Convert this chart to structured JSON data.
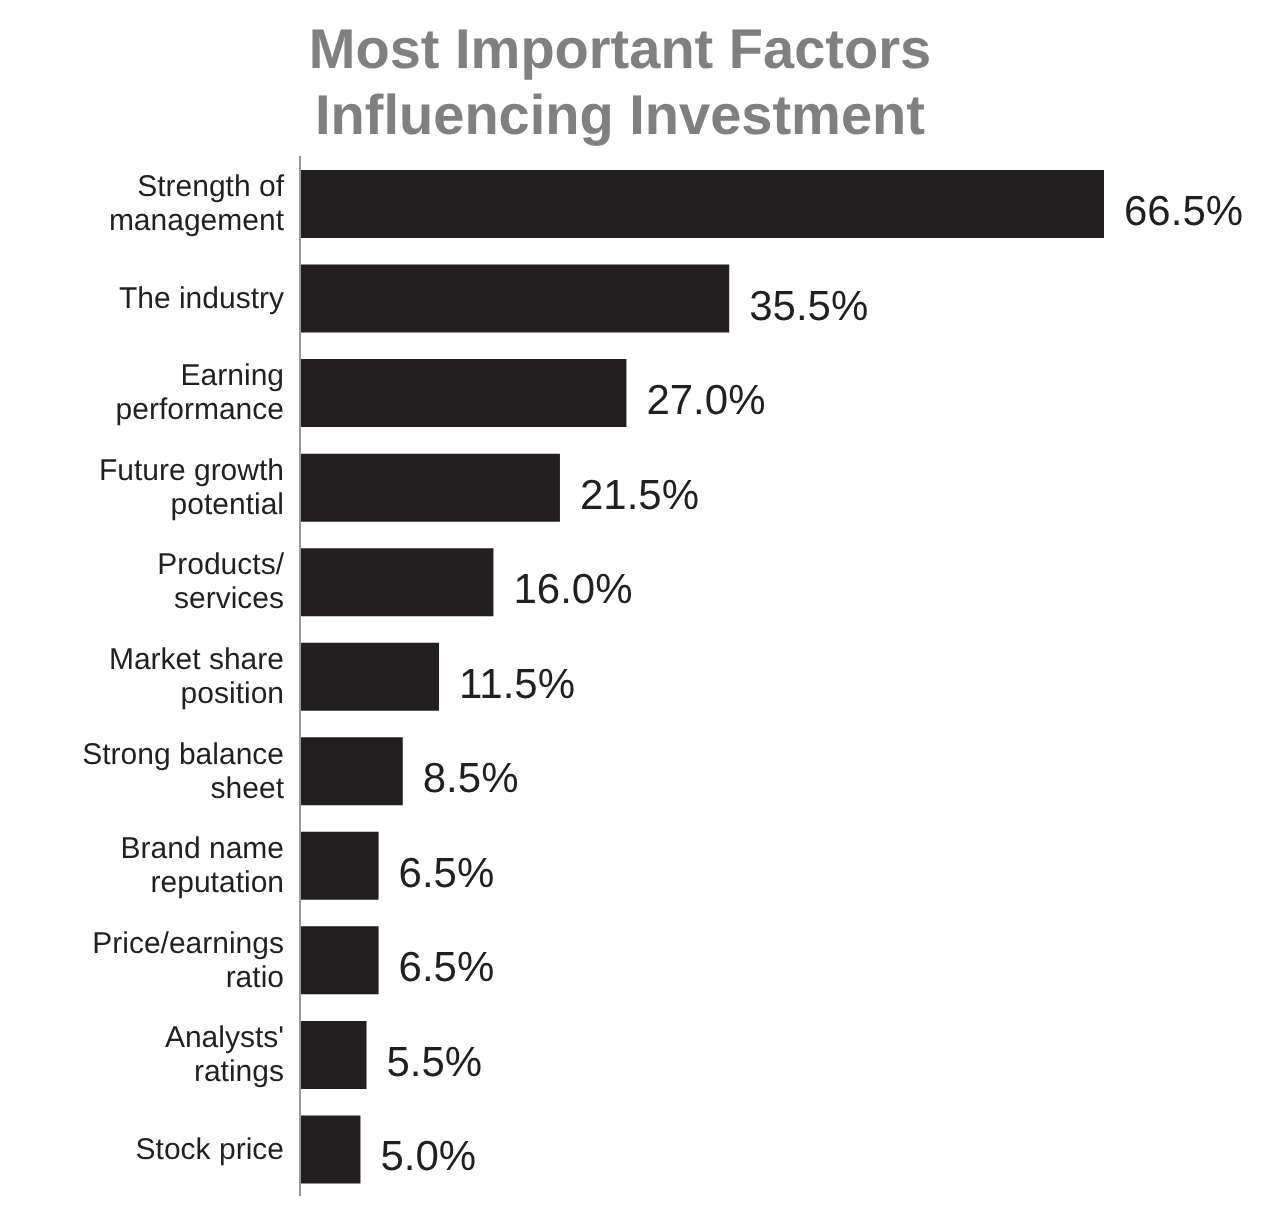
{
  "chart_data": {
    "type": "bar",
    "orientation": "horizontal",
    "title": "Most Important Factors Influencing Investment",
    "categories": [
      "Strength of\nmanagement",
      "The industry",
      "Earning\nperformance",
      "Future growth\npotential",
      "Products/\nservices",
      "Market share\nposition",
      "Strong balance\nsheet",
      "Brand name\nreputation",
      "Price/earnings\nratio",
      "Analysts'\nratings",
      "Stock price"
    ],
    "values": [
      66.5,
      35.5,
      27.0,
      21.5,
      16.0,
      11.5,
      8.5,
      6.5,
      6.5,
      5.5,
      5.0
    ],
    "value_labels": [
      "66.5%",
      "35.5%",
      "27.0%",
      "21.5%",
      "16.0%",
      "11.5%",
      "8.5%",
      "6.5%",
      "6.5%",
      "5.5%",
      "5.0%"
    ],
    "color": "#231f20",
    "tick_labels": "y"
  }
}
